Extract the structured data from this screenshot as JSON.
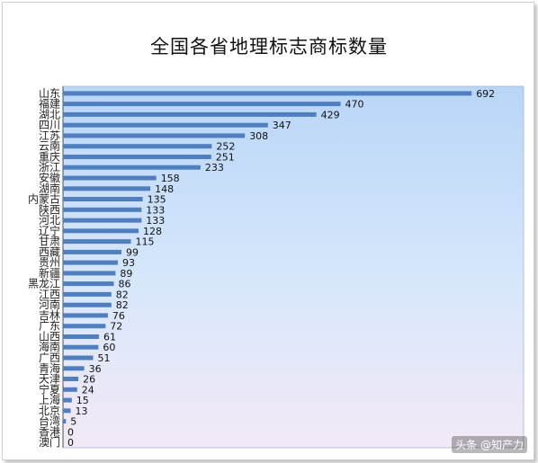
{
  "chart_data": {
    "type": "bar",
    "orientation": "horizontal",
    "title": "全国各省地理标志商标数量",
    "xlabel": "",
    "ylabel": "",
    "categories": [
      "山东",
      "福建",
      "湖北",
      "四川",
      "江苏",
      "云南",
      "重庆",
      "浙江",
      "安徽",
      "湖南",
      "内蒙古",
      "陕西",
      "河北",
      "辽宁",
      "甘肃",
      "西藏",
      "贵州",
      "新疆",
      "黑龙江",
      "江西",
      "河南",
      "吉林",
      "广东",
      "山西",
      "海南",
      "广西",
      "青海",
      "天津",
      "宁夏",
      "上海",
      "北京",
      "台湾",
      "香港",
      "澳门"
    ],
    "values": [
      692,
      470,
      429,
      347,
      308,
      252,
      251,
      233,
      158,
      148,
      135,
      133,
      133,
      128,
      115,
      99,
      93,
      89,
      86,
      82,
      82,
      76,
      72,
      61,
      60,
      51,
      36,
      26,
      24,
      15,
      13,
      5,
      0,
      0
    ],
    "xlim": [
      0,
      780
    ],
    "grid": false,
    "legend": "none",
    "bar_color": "#4f7fbf",
    "plot_bg_top": "#b9d6f7",
    "plot_bg_bottom": "#f3e9f6"
  },
  "watermark": "头条 @知产力"
}
